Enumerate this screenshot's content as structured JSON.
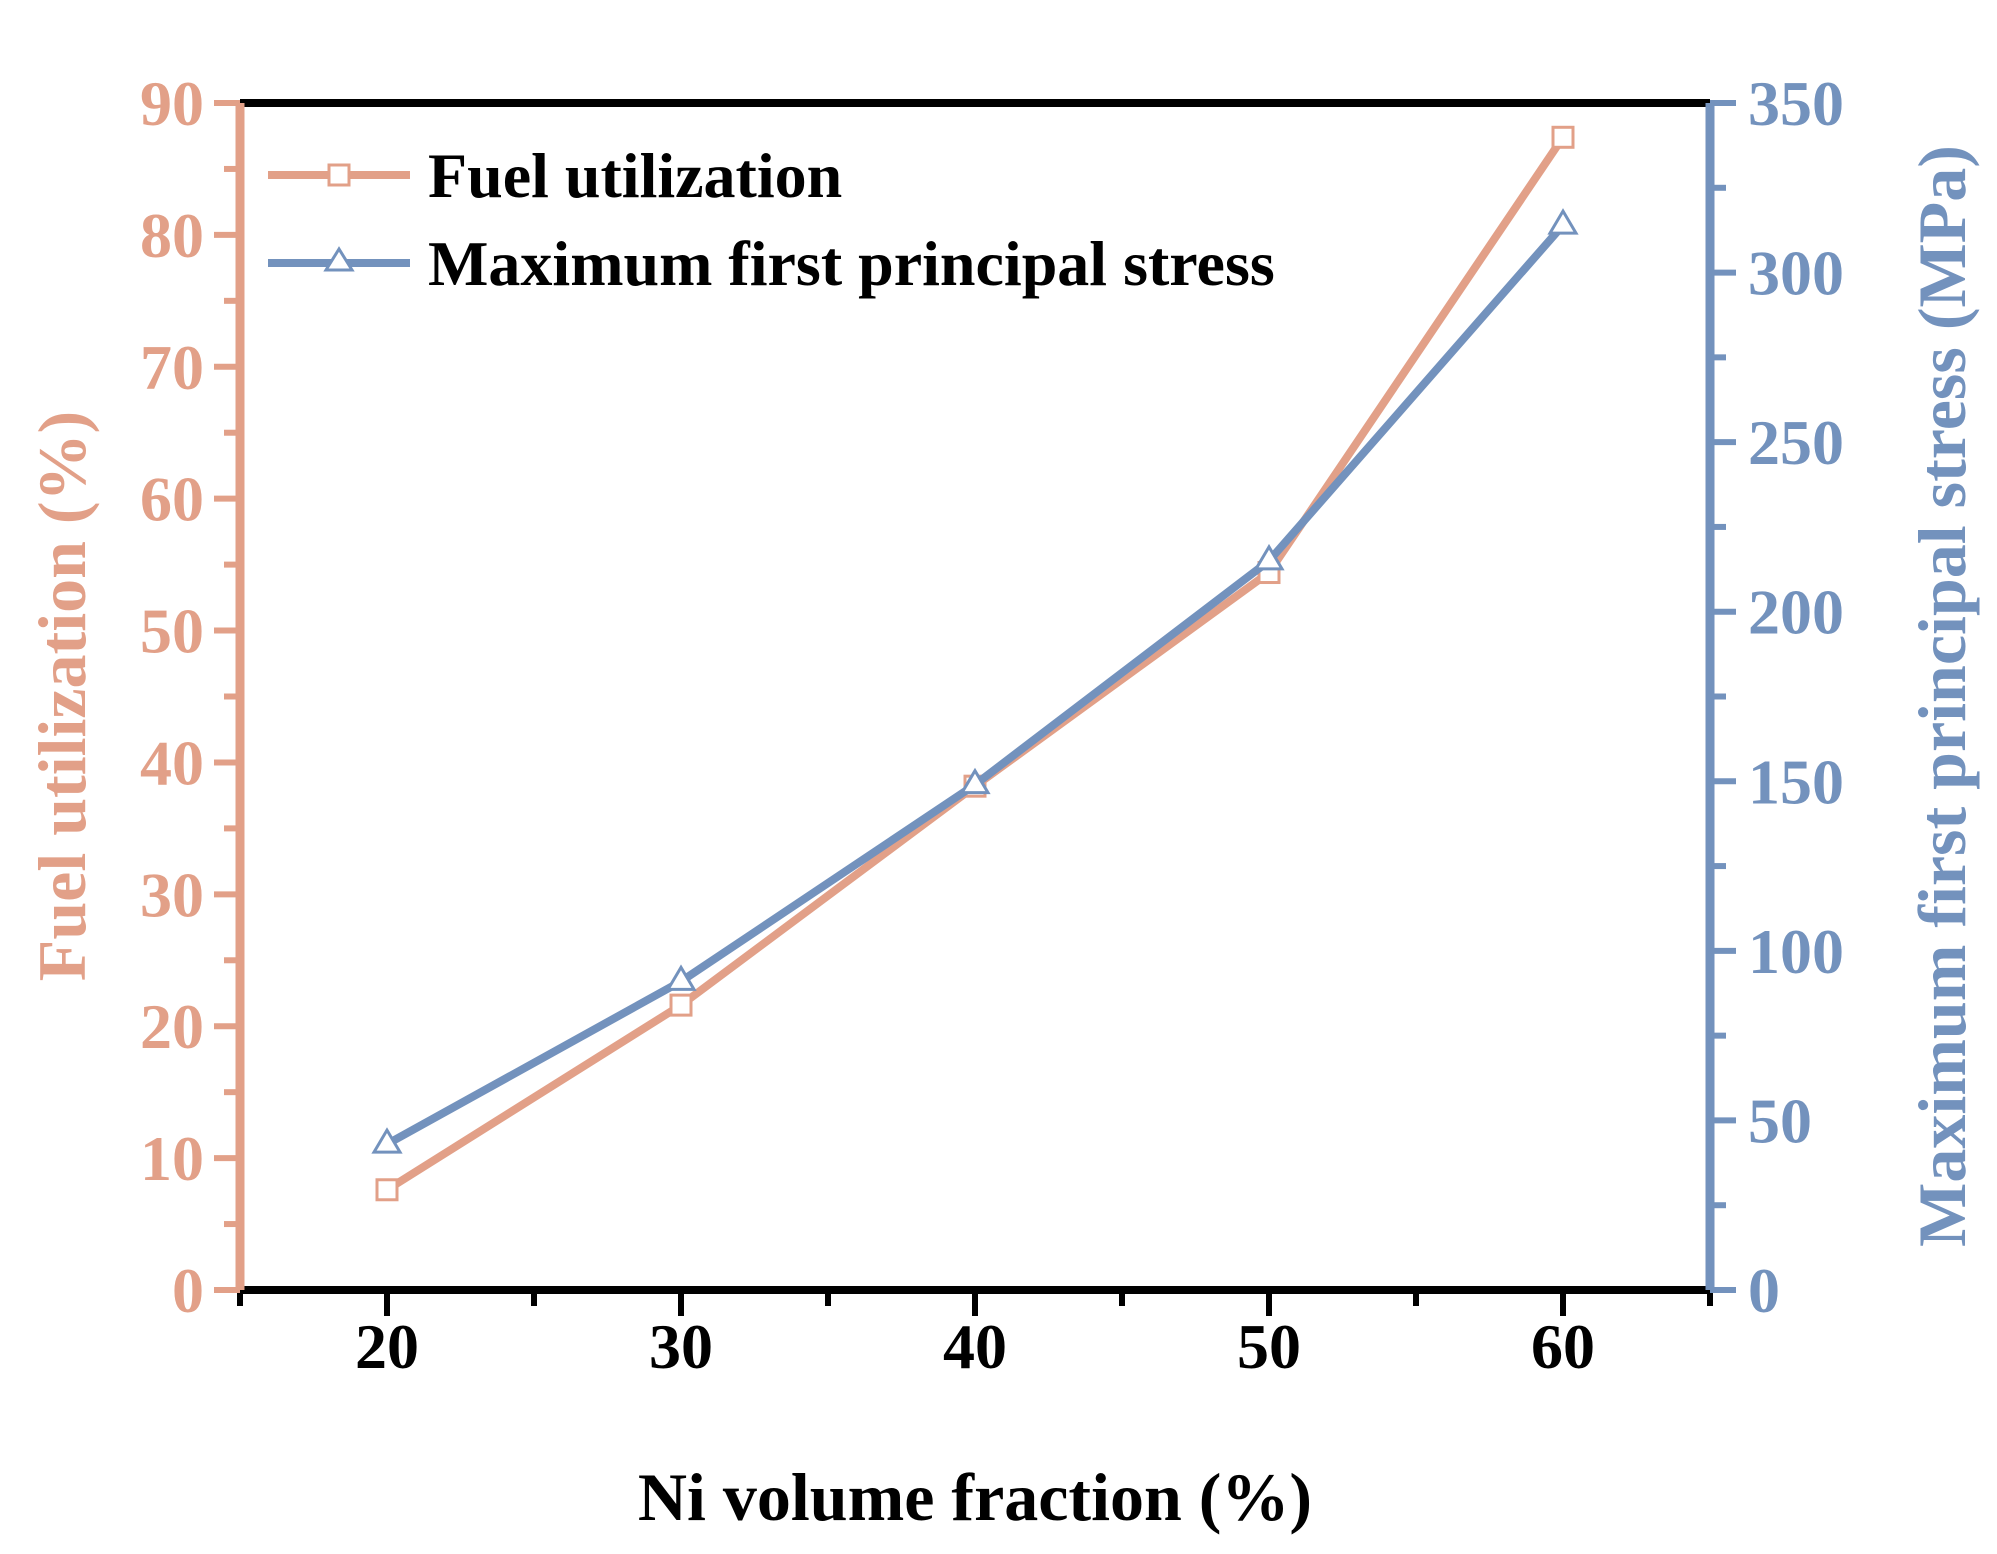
{
  "colors": {
    "fuel": "#E2A088",
    "stress": "#7392BD",
    "axis": "#000000",
    "background": "#FFFFFF"
  },
  "chart_data": {
    "type": "line",
    "xlabel": "Ni volume fraction (%)",
    "ylabel_left": "Fuel utilization (%)",
    "ylabel_right": "Maximum first principal stress (MPa)",
    "x_ticks": [
      "20",
      "30",
      "40",
      "50",
      "60"
    ],
    "y_left_ticks": [
      "0",
      "10",
      "20",
      "30",
      "40",
      "50",
      "60",
      "70",
      "80",
      "90"
    ],
    "y_right_ticks": [
      "0",
      "50",
      "100",
      "150",
      "200",
      "250",
      "300",
      "350"
    ],
    "xlim": [
      15,
      65
    ],
    "ylim_left": [
      0,
      90
    ],
    "ylim_right": [
      0,
      350
    ],
    "legend_position": "top-left",
    "series": [
      {
        "name": "Fuel utilization",
        "axis": "left",
        "marker": "square",
        "x": [
          20,
          30,
          40,
          50,
          60
        ],
        "values": [
          7.6,
          21.6,
          38.2,
          54.4,
          87.4
        ]
      },
      {
        "name": "Maximum first principal stress",
        "axis": "right",
        "marker": "triangle",
        "x": [
          20,
          30,
          40,
          50,
          60
        ],
        "values": [
          43,
          91,
          149,
          215,
          314
        ]
      }
    ]
  }
}
